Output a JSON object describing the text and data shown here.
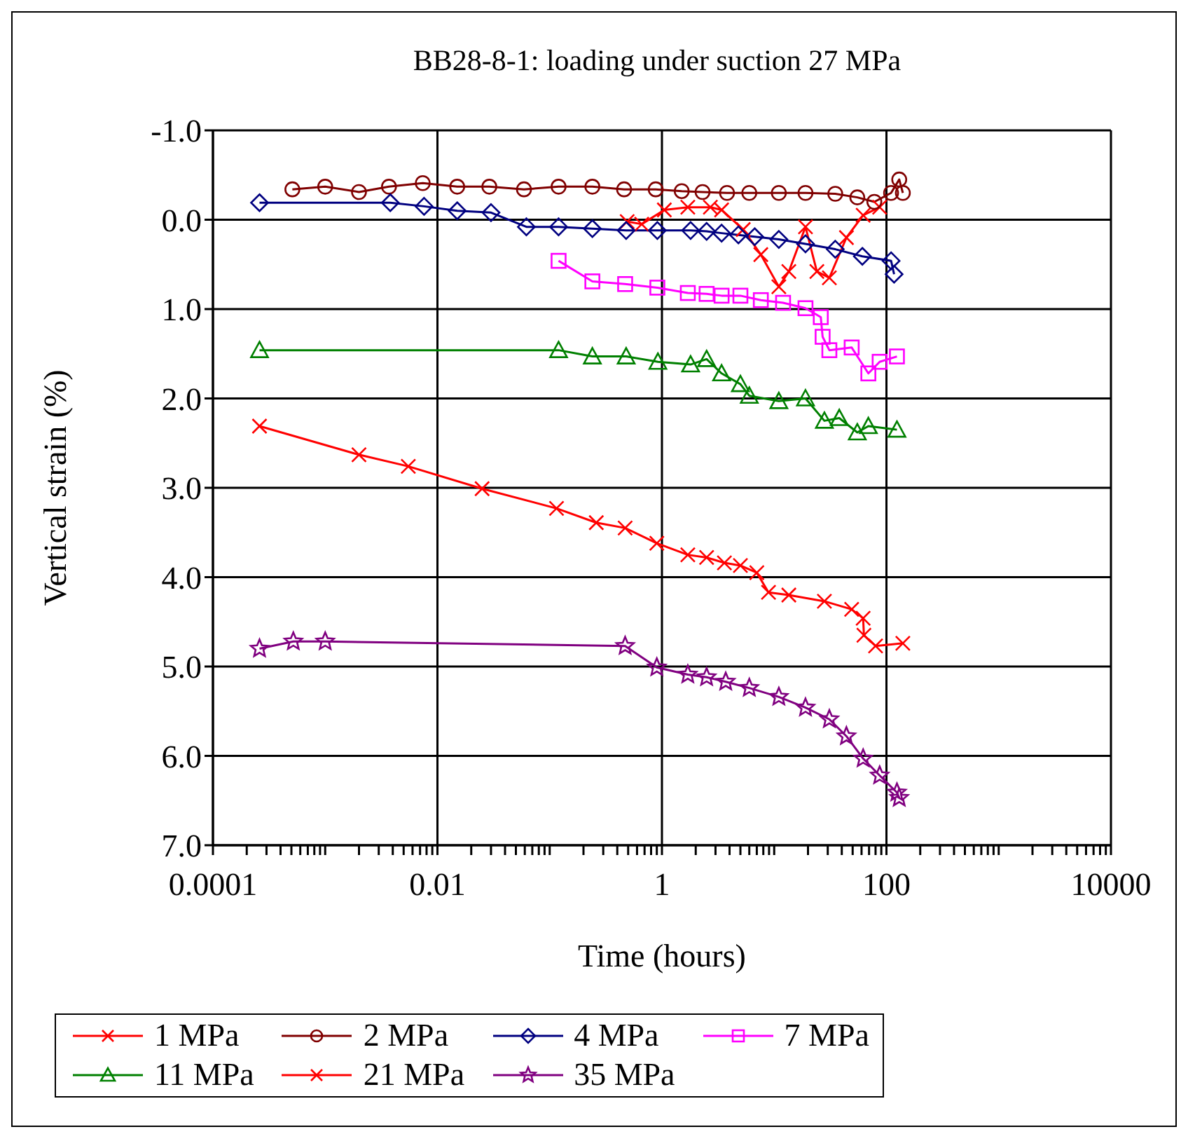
{
  "chart_data": {
    "type": "line",
    "title": "BB28-8-1: loading under suction 27 MPa",
    "xlabel": "Time (hours)",
    "ylabel": "Vertical strain (%)",
    "log": "x",
    "grid": true,
    "legend": "bottom",
    "line_style": "solid",
    "xlim": [
      0.0001,
      10000
    ],
    "xticks": [
      0.0001,
      {
        "value": 0.0002,
        "label": null
      },
      {
        "value": 0.0003,
        "label": null
      },
      {
        "value": 0.0004,
        "label": null
      },
      {
        "value": 0.0005,
        "label": null
      },
      {
        "value": 0.0006,
        "label": null
      },
      {
        "value": 0.0007,
        "label": null
      },
      {
        "value": 0.0008,
        "label": null
      },
      {
        "value": 0.0009,
        "label": null
      },
      {
        "value": 0.001,
        "label": null
      },
      {
        "value": 0.002,
        "label": null
      },
      {
        "value": 0.003,
        "label": null
      },
      {
        "value": 0.004,
        "label": null
      },
      {
        "value": 0.005,
        "label": null
      },
      {
        "value": 0.006,
        "label": null
      },
      {
        "value": 0.007,
        "label": null
      },
      {
        "value": 0.008,
        "label": null
      },
      {
        "value": 0.009,
        "label": null
      },
      0.01,
      {
        "value": 0.02,
        "label": null
      },
      {
        "value": 0.03,
        "label": null
      },
      {
        "value": 0.04,
        "label": null
      },
      {
        "value": 0.05,
        "label": null
      },
      {
        "value": 0.06,
        "label": null
      },
      {
        "value": 0.07,
        "label": null
      },
      {
        "value": 0.08,
        "label": null
      },
      {
        "value": 0.09,
        "label": null
      },
      {
        "value": 0.1,
        "label": null
      },
      {
        "value": 0.2,
        "label": null
      },
      {
        "value": 0.3,
        "label": null
      },
      {
        "value": 0.4,
        "label": null
      },
      {
        "value": 0.5,
        "label": null
      },
      {
        "value": 0.6,
        "label": null
      },
      {
        "value": 0.7,
        "label": null
      },
      {
        "value": 0.8,
        "label": null
      },
      {
        "value": 0.9,
        "label": null
      },
      1,
      {
        "value": 2,
        "label": null
      },
      {
        "value": 3,
        "label": null
      },
      {
        "value": 4,
        "label": null
      },
      {
        "value": 5,
        "label": null
      },
      {
        "value": 6,
        "label": null
      },
      {
        "value": 7,
        "label": null
      },
      {
        "value": 8,
        "label": null
      },
      {
        "value": 9,
        "label": null
      },
      {
        "value": 10,
        "label": null
      },
      {
        "value": 20,
        "label": null
      },
      {
        "value": 30,
        "label": null
      },
      {
        "value": 40,
        "label": null
      },
      {
        "value": 50,
        "label": null
      },
      {
        "value": 60,
        "label": null
      },
      {
        "value": 70,
        "label": null
      },
      {
        "value": 80,
        "label": null
      },
      {
        "value": 90,
        "label": null
      },
      100,
      {
        "value": 200,
        "label": null
      },
      {
        "value": 300,
        "label": null
      },
      {
        "value": 400,
        "label": null
      },
      {
        "value": 500,
        "label": null
      },
      {
        "value": 600,
        "label": null
      },
      {
        "value": 700,
        "label": null
      },
      {
        "value": 800,
        "label": null
      },
      {
        "value": 900,
        "label": null
      },
      {
        "value": 1000,
        "label": null
      },
      {
        "value": 2000,
        "label": null
      },
      {
        "value": 3000,
        "label": null
      },
      {
        "value": 4000,
        "label": null
      },
      {
        "value": 5000,
        "label": null
      },
      {
        "value": 6000,
        "label": null
      },
      {
        "value": 7000,
        "label": null
      },
      {
        "value": 8000,
        "label": null
      },
      {
        "value": 9000,
        "label": null
      },
      10000
    ],
    "ylim": [
      7,
      -1
    ],
    "yticks": [
      {
        "value": -1,
        "label": "-1.0"
      },
      {
        "value": 0,
        "label": "0.0"
      },
      {
        "value": 1,
        "label": "1.0"
      },
      {
        "value": 2,
        "label": "2.0"
      },
      {
        "value": 3,
        "label": "3.0"
      },
      {
        "value": 4,
        "label": "4.0"
      },
      {
        "value": 5,
        "label": "5.0"
      },
      {
        "value": 6,
        "label": "6.0"
      },
      {
        "value": 7,
        "label": "7.0"
      }
    ],
    "series": [
      {
        "name": "1 MPa",
        "color": "#ff0000",
        "marker": "cross",
        "x": [
          0.49,
          0.66,
          1.05,
          1.7,
          2.7,
          3.4,
          5.3,
          7.6,
          11,
          13.5,
          19,
          24,
          31,
          44,
          62,
          87
        ],
        "values": [
          0.02,
          0.05,
          -0.11,
          -0.14,
          -0.14,
          -0.11,
          0.11,
          0.39,
          0.75,
          0.58,
          0.08,
          0.58,
          0.65,
          0.2,
          -0.05,
          -0.14
        ]
      },
      {
        "name": "2 MPa",
        "color": "#800000",
        "marker": "circle",
        "x": [
          0.00051,
          0.001,
          0.002,
          0.0037,
          0.0074,
          0.015,
          0.029,
          0.059,
          0.12,
          0.24,
          0.46,
          0.88,
          1.5,
          2.3,
          3.8,
          6,
          11,
          19,
          35,
          55,
          78,
          110,
          130,
          140
        ],
        "values": [
          -0.34,
          -0.37,
          -0.31,
          -0.37,
          -0.41,
          -0.37,
          -0.37,
          -0.34,
          -0.37,
          -0.37,
          -0.34,
          -0.34,
          -0.32,
          -0.31,
          -0.3,
          -0.3,
          -0.3,
          -0.3,
          -0.29,
          -0.25,
          -0.2,
          -0.3,
          -0.45,
          -0.3
        ]
      },
      {
        "name": "4 MPa",
        "color": "#000080",
        "marker": "diamond",
        "x": [
          0.00026,
          0.0038,
          0.0076,
          0.015,
          0.03,
          0.062,
          0.12,
          0.24,
          0.48,
          0.91,
          1.8,
          2.5,
          3.4,
          4.8,
          6.7,
          11,
          19,
          35,
          61,
          110,
          117
        ],
        "values": [
          -0.19,
          -0.19,
          -0.15,
          -0.1,
          -0.08,
          0.08,
          0.08,
          0.1,
          0.12,
          0.12,
          0.12,
          0.13,
          0.15,
          0.17,
          0.19,
          0.22,
          0.27,
          0.33,
          0.41,
          0.46,
          0.61
        ]
      },
      {
        "name": "7 MPa",
        "color": "#ff00ff",
        "marker": "square",
        "x": [
          0.12,
          0.24,
          0.47,
          0.91,
          1.7,
          2.5,
          3.4,
          5,
          7.6,
          12,
          19,
          26,
          27,
          31,
          49,
          69,
          87,
          124
        ],
        "values": [
          0.46,
          0.69,
          0.72,
          0.76,
          0.82,
          0.83,
          0.85,
          0.85,
          0.9,
          0.93,
          0.99,
          1.09,
          1.31,
          1.46,
          1.43,
          1.72,
          1.59,
          1.53
        ]
      },
      {
        "name": "11 MPa",
        "color": "#008000",
        "marker": "triangle",
        "x": [
          0.00026,
          0.12,
          0.24,
          0.48,
          0.92,
          1.8,
          2.5,
          3.4,
          5,
          6,
          11,
          19,
          28,
          38,
          55,
          69,
          124
        ],
        "values": [
          1.46,
          1.46,
          1.53,
          1.53,
          1.59,
          1.62,
          1.56,
          1.72,
          1.84,
          1.97,
          2.03,
          2,
          2.25,
          2.22,
          2.38,
          2.31,
          2.35
        ]
      },
      {
        "name": "21 MPa",
        "color": "#ff0000",
        "marker": "cross",
        "x": [
          0.00026,
          0.002,
          0.0055,
          0.025,
          0.115,
          0.26,
          0.47,
          0.9,
          1.7,
          2.5,
          3.6,
          5,
          7,
          8.9,
          13.5,
          28,
          49,
          62,
          63,
          80,
          140
        ],
        "values": [
          2.31,
          2.63,
          2.76,
          3.01,
          3.23,
          3.39,
          3.45,
          3.62,
          3.75,
          3.78,
          3.84,
          3.87,
          3.95,
          4.17,
          4.2,
          4.27,
          4.36,
          4.46,
          4.65,
          4.77,
          4.74
        ]
      },
      {
        "name": "35 MPa",
        "color": "#800080",
        "marker": "star",
        "x": [
          0.00026,
          0.00052,
          0.001,
          0.47,
          0.9,
          1.7,
          2.5,
          3.7,
          6,
          11,
          19,
          31,
          44,
          62,
          87,
          124,
          130
        ],
        "values": [
          4.8,
          4.72,
          4.72,
          4.77,
          5.01,
          5.09,
          5.12,
          5.17,
          5.24,
          5.34,
          5.46,
          5.59,
          5.78,
          6.03,
          6.22,
          6.41,
          6.47
        ]
      }
    ]
  }
}
